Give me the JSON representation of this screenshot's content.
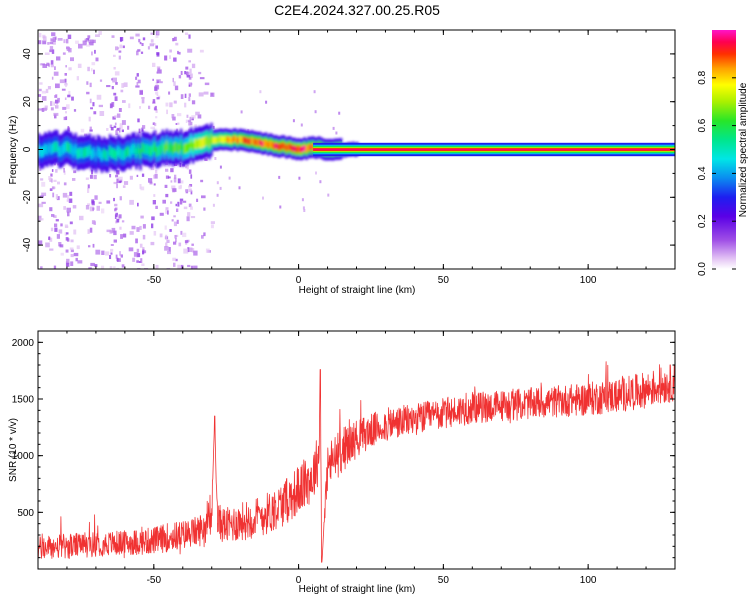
{
  "title": "C2E4.2024.327.00.25.R05",
  "chart_data": [
    {
      "type": "heatmap",
      "xlabel": "Height of straight line (km)",
      "ylabel": "Frequency (Hz)",
      "xlim": [
        -90,
        130
      ],
      "ylim": [
        -50,
        50
      ],
      "xticks": [
        -50,
        0,
        50,
        100
      ],
      "yticks": [
        -40,
        -20,
        0,
        20,
        40
      ],
      "colorbar": {
        "label": "Normalized spectral amplitude",
        "range": [
          0.0,
          1.0
        ],
        "ticks": [
          0.0,
          0.2,
          0.4,
          0.6,
          0.8
        ],
        "tick_labels": [
          "0.0",
          "0.2",
          "0.4",
          "0.6",
          "0.8"
        ]
      },
      "peak_track": {
        "x": [
          -90,
          -80,
          -70,
          -60,
          -50,
          -45,
          -40,
          -35,
          -30,
          -25,
          -20,
          -15,
          -10,
          -5,
          0,
          5,
          10,
          20,
          50,
          100,
          130
        ],
        "y": [
          0,
          0,
          -2,
          -1,
          0,
          1,
          1,
          2,
          4,
          4,
          4,
          3,
          2,
          1,
          0,
          1,
          0,
          0,
          0,
          0,
          0
        ],
        "amplitude": [
          0.45,
          0.5,
          0.45,
          0.5,
          0.55,
          0.6,
          0.6,
          0.7,
          0.75,
          0.8,
          0.85,
          0.9,
          0.9,
          0.92,
          0.95,
          0.85,
          0.9,
          0.92,
          0.95,
          0.95,
          0.95
        ]
      }
    },
    {
      "type": "line",
      "xlabel": "Height of straight line (km)",
      "ylabel": "SNR (10 * v/v)",
      "xlim": [
        -90,
        130
      ],
      "ylim": [
        0,
        2100
      ],
      "xticks": [
        -50,
        0,
        50,
        100
      ],
      "yticks": [
        500,
        1000,
        1500,
        2000
      ],
      "series": [
        {
          "color": "#f03232",
          "x": [
            -90,
            -80,
            -70,
            -60,
            -50,
            -45,
            -40,
            -37,
            -35,
            -32,
            -30,
            -29,
            -28,
            -25,
            -20,
            -15,
            -10,
            -5,
            0,
            5,
            7,
            7.5,
            8,
            10,
            15,
            20,
            25,
            30,
            40,
            50,
            60,
            70,
            80,
            90,
            100,
            110,
            120,
            130
          ],
          "y": [
            180,
            200,
            220,
            230,
            250,
            280,
            300,
            320,
            330,
            380,
            450,
            1350,
            420,
            380,
            420,
            450,
            500,
            580,
            700,
            820,
            1000,
            1760,
            60,
            900,
            1050,
            1150,
            1220,
            1270,
            1320,
            1370,
            1420,
            1440,
            1460,
            1480,
            1500,
            1530,
            1580,
            1650
          ],
          "noise_amplitude": [
            110,
            110,
            110,
            110,
            120,
            130,
            130,
            130,
            140,
            150,
            160,
            0,
            160,
            160,
            170,
            180,
            190,
            200,
            220,
            230,
            230,
            0,
            0,
            220,
            200,
            170,
            150,
            150,
            140,
            140,
            140,
            140,
            140,
            140,
            150,
            150,
            160,
            170
          ]
        }
      ]
    }
  ]
}
